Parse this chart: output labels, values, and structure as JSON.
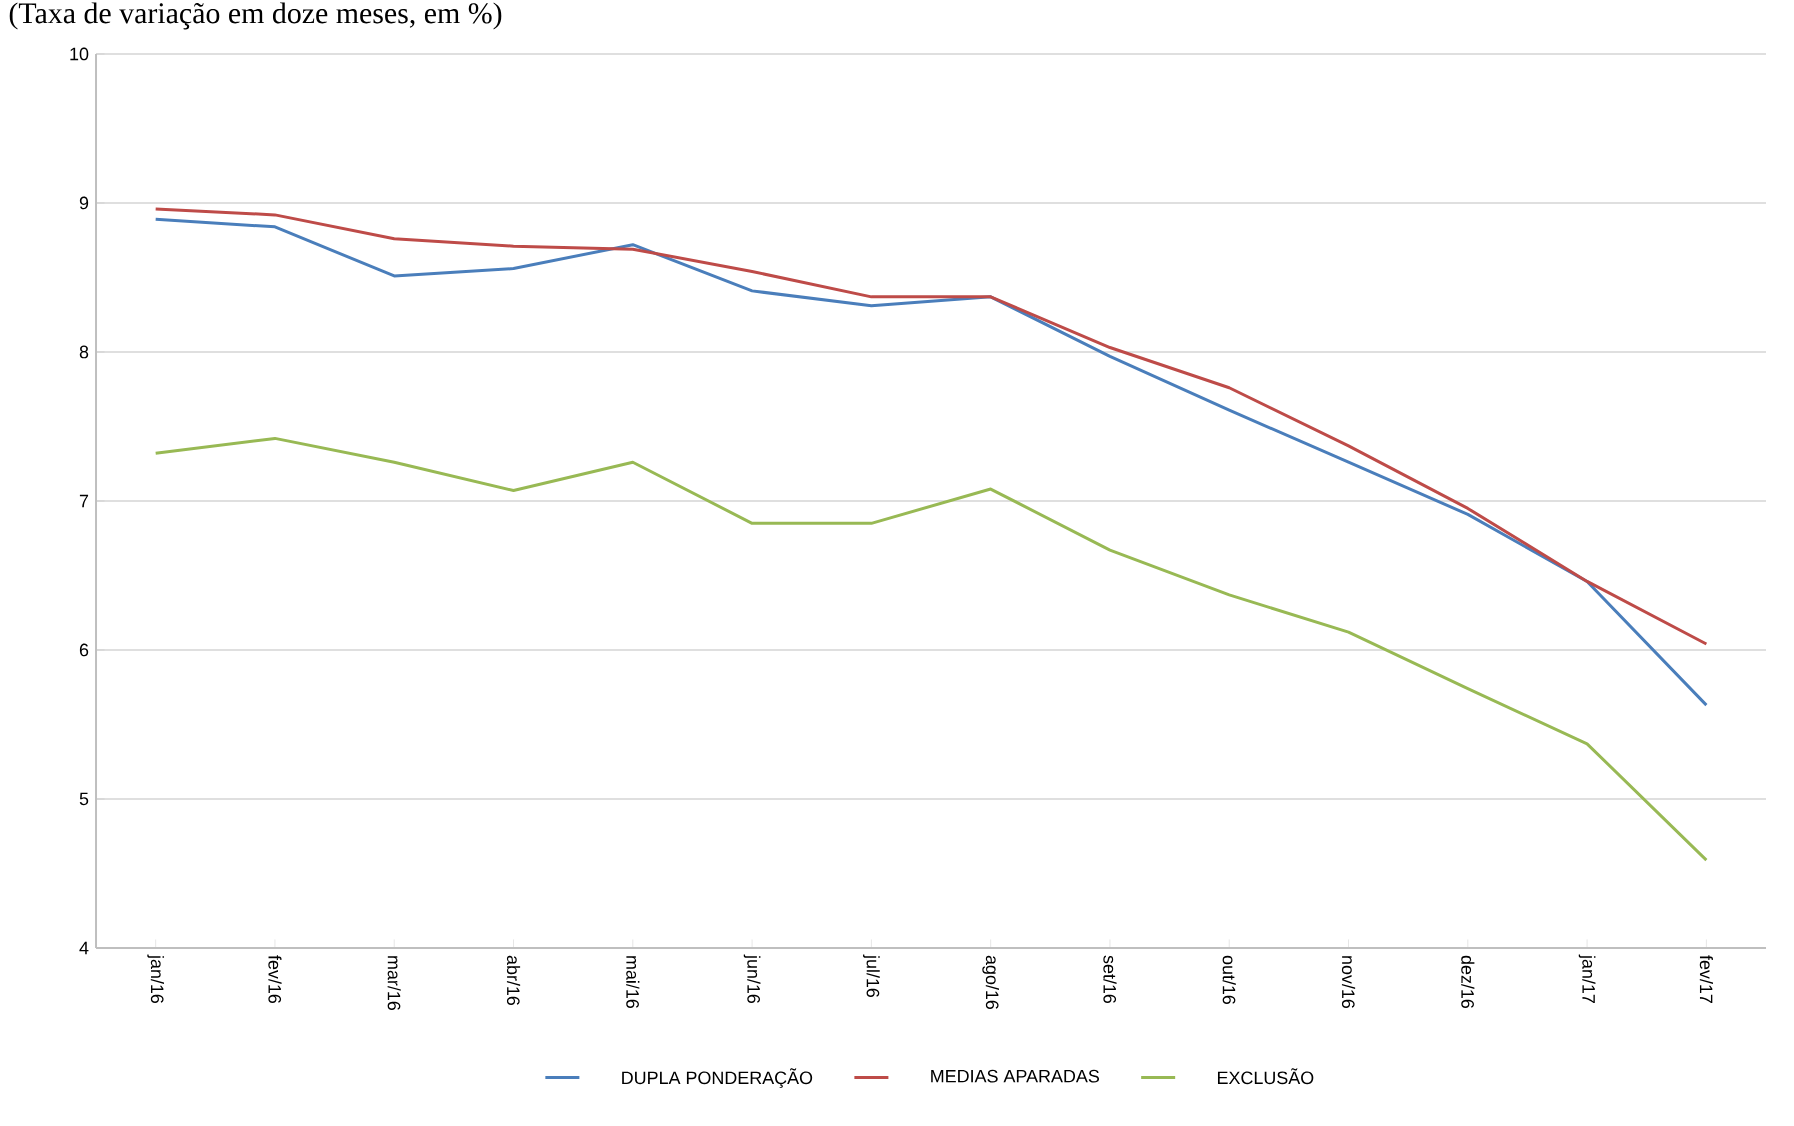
{
  "chart_data": {
    "type": "line",
    "title": "(Taxa de variação em doze meses, em %)",
    "categories": [
      "jan/16",
      "fev/16",
      "mar/16",
      "abr/16",
      "mai/16",
      "jun/16",
      "jul/16",
      "ago/16",
      "set/16",
      "out/16",
      "nov/16",
      "dez/16",
      "jan/17",
      "fev/17"
    ],
    "series": [
      {
        "name": "DUPLA PONDERAÇÃO",
        "color": "#4a7ebb",
        "values": [
          8.89,
          8.84,
          8.51,
          8.56,
          8.72,
          8.41,
          8.31,
          8.37,
          7.97,
          7.61,
          7.26,
          6.91,
          6.46,
          5.63
        ]
      },
      {
        "name": "MEDIAS APARADAS",
        "color": "#be4b48",
        "values": [
          8.96,
          8.92,
          8.76,
          8.71,
          8.69,
          8.54,
          8.37,
          8.37,
          8.03,
          7.76,
          7.37,
          6.95,
          6.46,
          6.04
        ]
      },
      {
        "name": "EXCLUSÃO",
        "color": "#98b954",
        "values": [
          7.32,
          7.42,
          7.26,
          7.07,
          7.26,
          6.85,
          6.85,
          7.08,
          6.67,
          6.37,
          6.12,
          5.74,
          5.37,
          4.59
        ]
      }
    ],
    "ylim": [
      4,
      10
    ],
    "yticks": [
      4,
      5,
      6,
      7,
      8,
      9,
      10
    ],
    "grid": "y",
    "legend": "bottom"
  }
}
